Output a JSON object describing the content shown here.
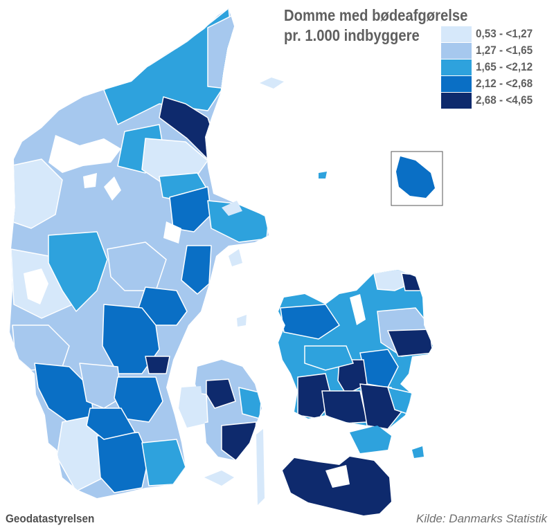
{
  "map": {
    "title_line1": "Domme med bødeafgørelse",
    "title_line2": "pr. 1.000 indbyggere",
    "legend": [
      {
        "label": "0,53 - <1,27",
        "color": "#d6e8fa"
      },
      {
        "label": "1,27 - <1,65",
        "color": "#a6c8ee"
      },
      {
        "label": "1,65 - <2,12",
        "color": "#2ea2dd"
      },
      {
        "label": "2,12 - <2,68",
        "color": "#0a6fc5"
      },
      {
        "label": "2,68 - <4,65",
        "color": "#0e2a6d"
      }
    ],
    "credit": "Geodatastyrelsen",
    "source": "Kilde: Danmarks Statistik"
  }
}
